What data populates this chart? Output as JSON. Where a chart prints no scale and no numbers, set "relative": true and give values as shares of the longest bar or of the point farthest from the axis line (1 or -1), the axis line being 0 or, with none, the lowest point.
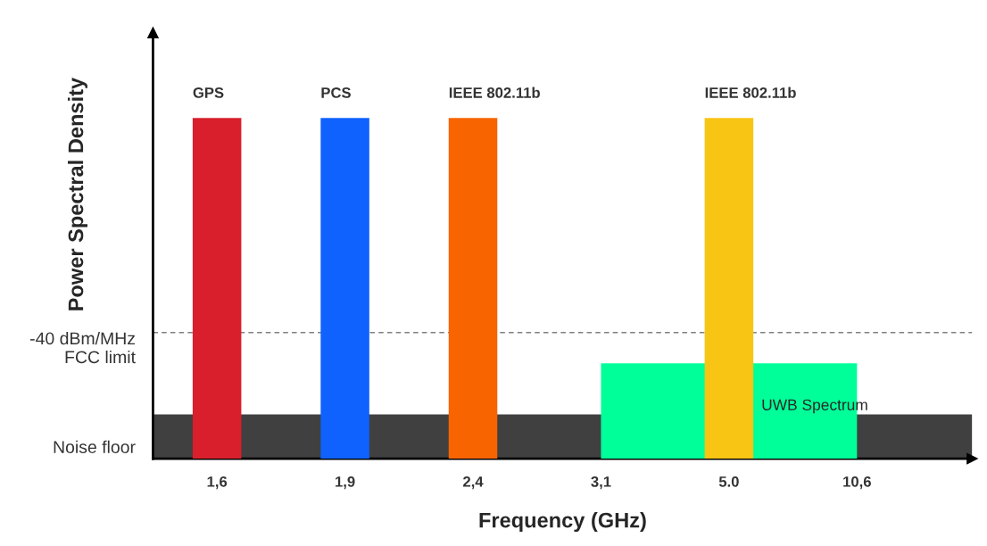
{
  "chart_data": {
    "type": "bar",
    "relative": true,
    "xlabel": "Frequency (GHz)",
    "ylabel": "Power Spectral Density",
    "categories": [
      "1,6",
      "1,9",
      "2,4",
      "3,1",
      "5.0",
      "10,6"
    ],
    "series": [
      {
        "type": "area",
        "name": "UWB Spectrum",
        "color": "#00ff99",
        "x": [
          "3,1",
          "10,6"
        ],
        "values": [
          0.28,
          0.28
        ]
      },
      {
        "values": [
          1,
          1,
          1,
          null,
          1,
          null
        ],
        "colors": [
          "#d91f2b",
          "#0f62fe",
          "#f76400",
          "#ffffff",
          "#f8c515",
          "#ffffff"
        ]
      }
    ],
    "bands": [
      {
        "axis": "y",
        "from": 0,
        "to": 0.13,
        "label": "Noise floor",
        "color": "#404040"
      }
    ],
    "ref_lines": [
      {
        "axis": "y",
        "value": 0.37,
        "label": "-40 dBm/MHz\nFCC limit",
        "color": "#808080",
        "line_style": "dashed"
      }
    ],
    "annotations": [
      {
        "text": "GPS",
        "x": "1,6",
        "y": 1
      },
      {
        "text": "PCS",
        "x": "1,9",
        "y": 1
      },
      {
        "text": "IEEE 802.11b",
        "x": "2,4",
        "y": 1
      },
      {
        "text": "IEEE 802.11b",
        "x": "5.0",
        "y": 1
      }
    ],
    "grid": false,
    "legend": false
  }
}
